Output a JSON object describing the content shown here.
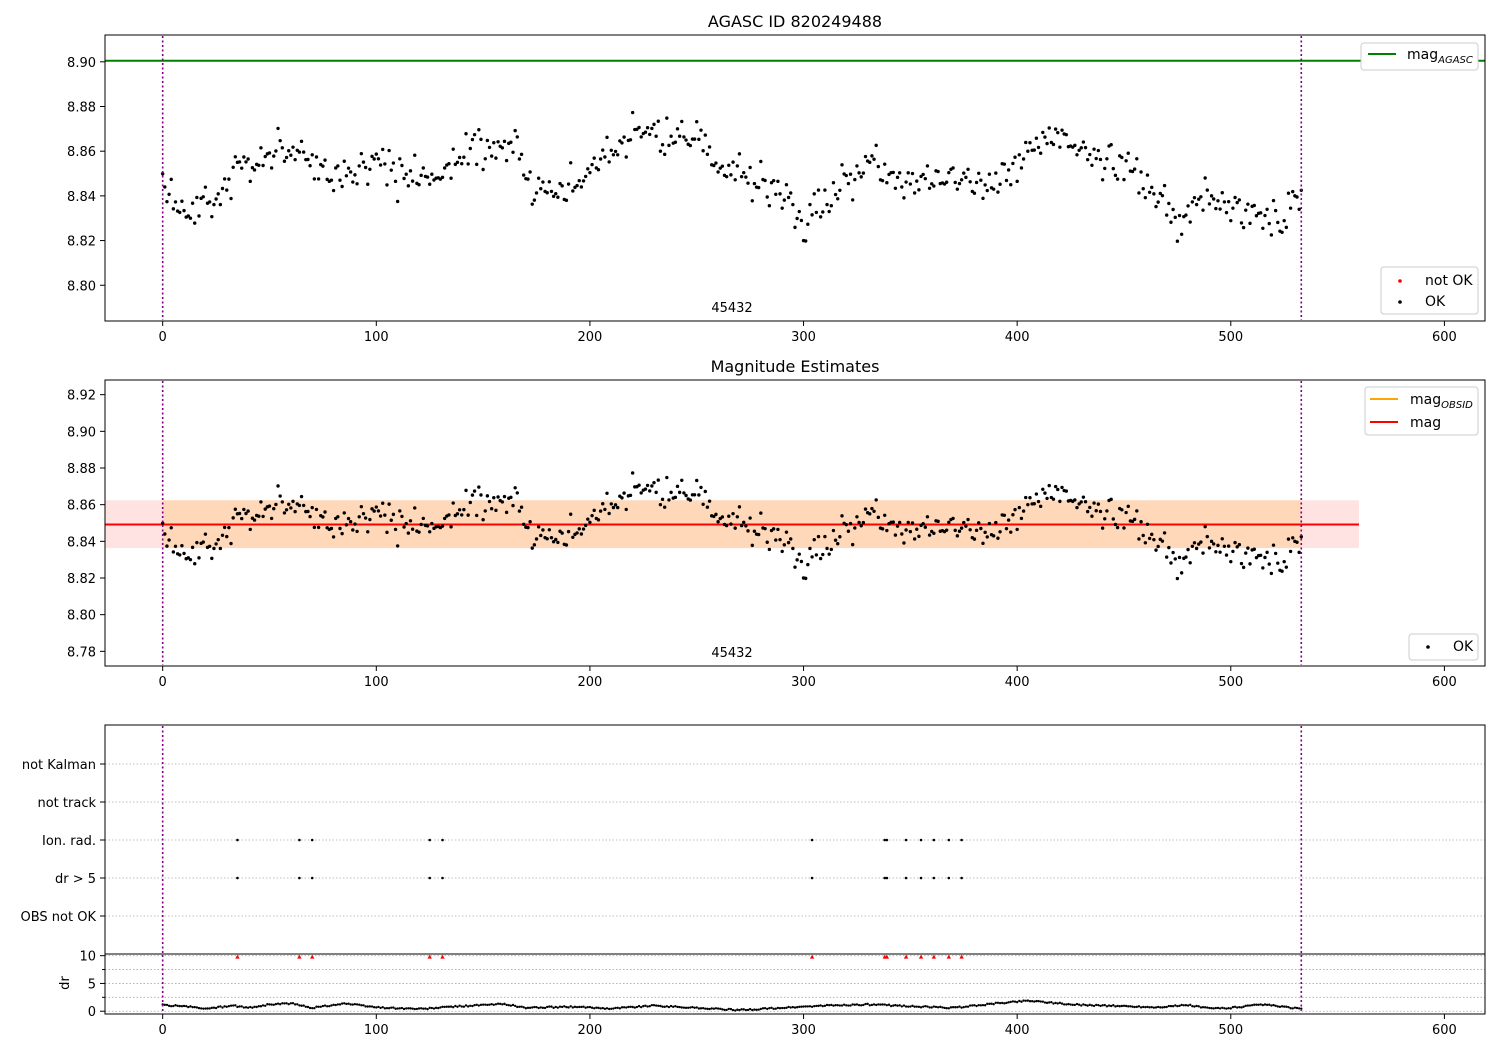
{
  "chart_data": [
    {
      "type": "scatter",
      "title": "AGASC ID 820249488",
      "xlim": [
        -27,
        619
      ],
      "ylim": [
        8.784,
        8.912
      ],
      "xticks": [
        0,
        100,
        200,
        300,
        400,
        500,
        600
      ],
      "yticks": [
        "8.80",
        "8.82",
        "8.84",
        "8.86",
        "8.88",
        "8.90"
      ],
      "obsid_label": "45432",
      "obsid_label_x": 266,
      "obsid_boundaries": [
        0,
        533
      ],
      "mag_agasc": 8.9005,
      "lines": [
        {
          "name": "mag_AGASC",
          "color": "#008000"
        }
      ],
      "series": [
        {
          "name": "not OK",
          "color": "#ff0000",
          "values": []
        },
        {
          "name": "OK",
          "color": "#000000"
        }
      ],
      "legends": [
        "top-right",
        "bottom-right"
      ]
    },
    {
      "type": "scatter",
      "title": "Magnitude Estimates",
      "xlim": [
        -27,
        619
      ],
      "ylim": [
        8.772,
        8.928
      ],
      "xticks": [
        0,
        100,
        200,
        300,
        400,
        500,
        600
      ],
      "yticks": [
        "8.78",
        "8.80",
        "8.82",
        "8.84",
        "8.86",
        "8.88",
        "8.90",
        "8.92"
      ],
      "obsid_label": "45432",
      "obsid_boundaries": [
        0,
        533
      ],
      "mag_obsid": 8.8492,
      "mag": 8.8492,
      "band_obsid": [
        8.8363,
        8.8624
      ],
      "band_mag": [
        8.8363,
        8.8624
      ],
      "band_xrange": [
        -27,
        560
      ],
      "lines": [
        {
          "name": "mag_OBSID",
          "color": "#ffa500"
        },
        {
          "name": "mag",
          "color": "#ff0000"
        }
      ],
      "series": [
        {
          "name": "OK",
          "color": "#000000"
        }
      ],
      "legends": [
        "top-right",
        "bottom-right"
      ]
    },
    {
      "type": "scatter",
      "title": "",
      "xlim": [
        -27,
        619
      ],
      "categories": [
        "not Kalman",
        "not track",
        "Ion. rad.",
        "dr > 5",
        "OBS not OK"
      ],
      "flags": {
        "not Kalman": [],
        "not track": [],
        "Ion. rad.": [
          35,
          64,
          70,
          125,
          131,
          304,
          338,
          339,
          348,
          355,
          361,
          368,
          374
        ],
        "dr > 5": [
          35,
          64,
          70,
          125,
          131,
          304,
          338,
          339,
          348,
          355,
          361,
          368,
          374
        ],
        "OBS not OK": []
      }
    },
    {
      "type": "scatter",
      "title": "",
      "ylabel": "dr",
      "xlim": [
        -27,
        619
      ],
      "ylim": [
        -0.5,
        10.3
      ],
      "xticks": [
        0,
        100,
        200,
        300,
        400,
        500,
        600
      ],
      "yticks": [
        "0",
        "5",
        "10"
      ],
      "clipped_value": 10,
      "clipped_x": [
        35,
        64,
        70,
        125,
        131,
        304,
        338,
        339,
        348,
        355,
        361,
        368,
        374
      ],
      "dr_envelope": [
        [
          0,
          1.1
        ],
        [
          10,
          0.9
        ],
        [
          20,
          0.45
        ],
        [
          33,
          1.0
        ],
        [
          40,
          0.6
        ],
        [
          50,
          1.2
        ],
        [
          60,
          1.4
        ],
        [
          70,
          0.6
        ],
        [
          85,
          1.4
        ],
        [
          100,
          0.7
        ],
        [
          112,
          0.5
        ],
        [
          122,
          0.4
        ],
        [
          135,
          0.8
        ],
        [
          150,
          1.1
        ],
        [
          160,
          1.3
        ],
        [
          170,
          0.6
        ],
        [
          190,
          0.8
        ],
        [
          210,
          0.5
        ],
        [
          230,
          1.0
        ],
        [
          250,
          0.6
        ],
        [
          270,
          0.2
        ],
        [
          290,
          0.6
        ],
        [
          310,
          1.0
        ],
        [
          330,
          1.2
        ],
        [
          350,
          0.9
        ],
        [
          370,
          0.6
        ],
        [
          390,
          1.4
        ],
        [
          405,
          1.9
        ],
        [
          412,
          1.7
        ],
        [
          425,
          1.2
        ],
        [
          450,
          0.9
        ],
        [
          465,
          0.7
        ],
        [
          480,
          1.1
        ],
        [
          490,
          0.5
        ],
        [
          500,
          0.6
        ],
        [
          515,
          1.2
        ],
        [
          533,
          0.4
        ]
      ]
    }
  ]
}
